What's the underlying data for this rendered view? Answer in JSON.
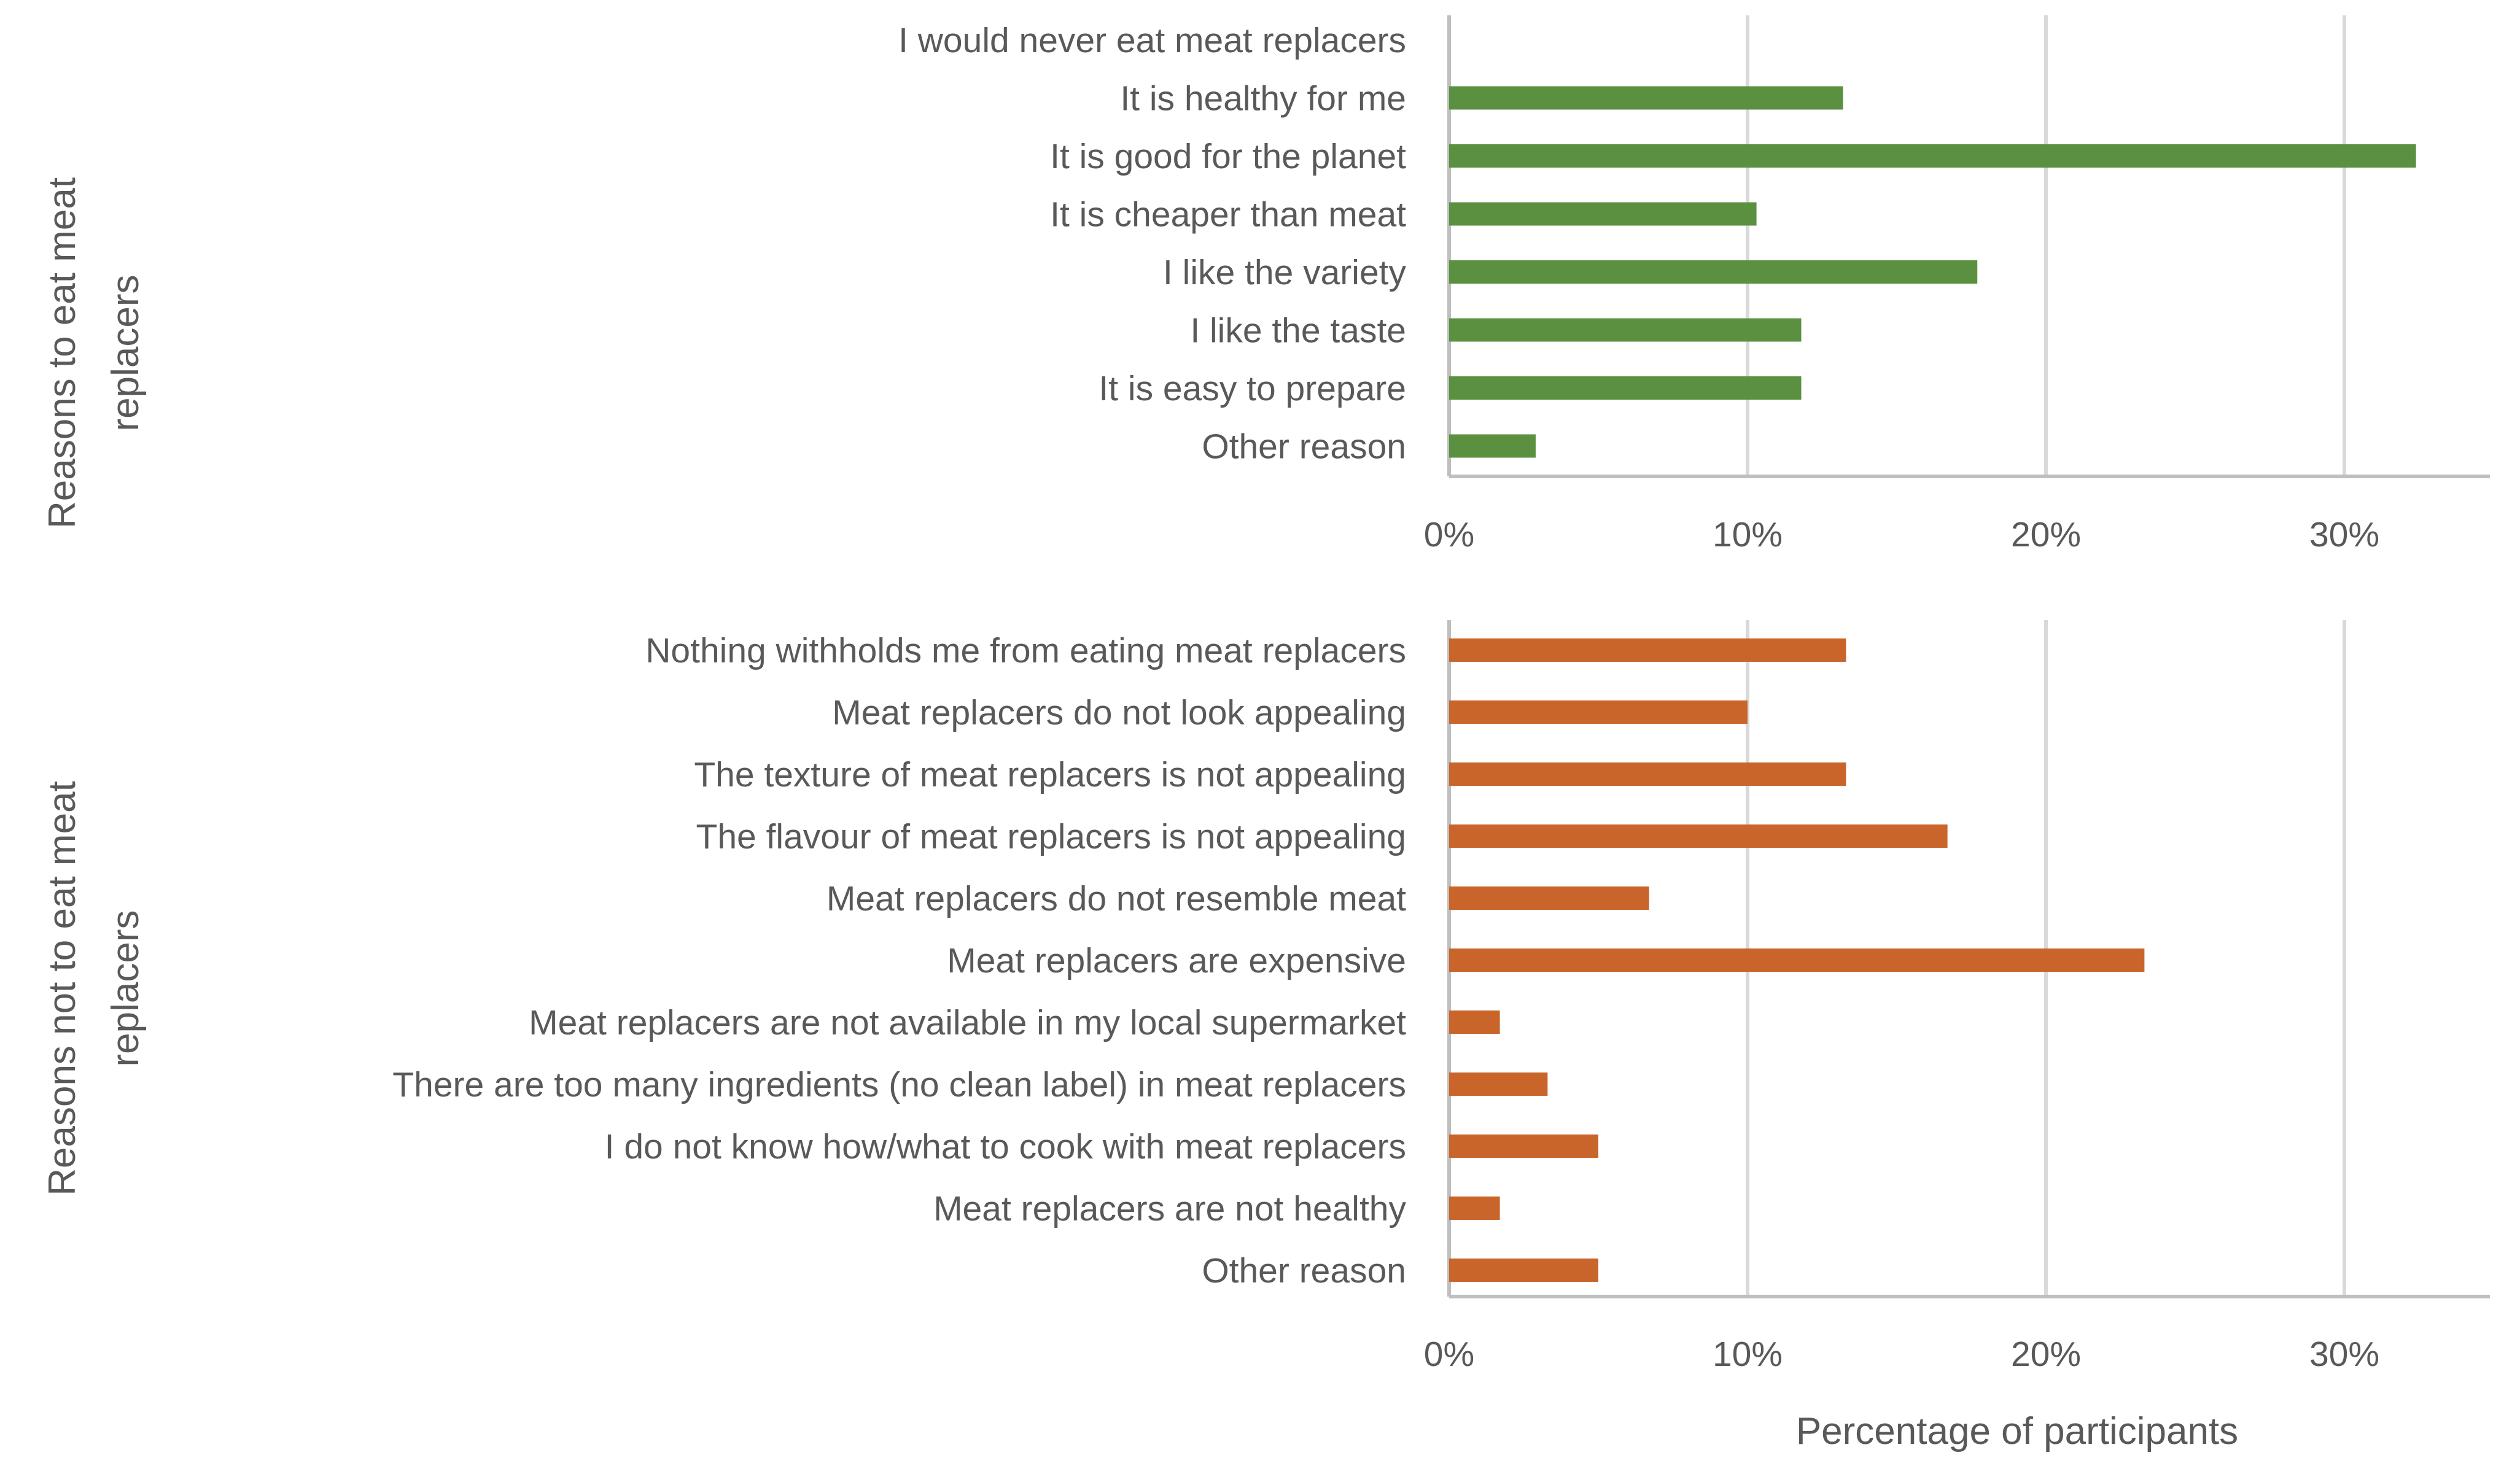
{
  "colors": {
    "reasons_to_eat": "#5b9040",
    "reasons_not_to_eat": "#c9652b",
    "text": "#595959",
    "gridline": "#d9d9d9"
  },
  "chart_data": [
    {
      "type": "bar",
      "orientation": "horizontal",
      "ylabel": "Reasons to eat meat replacers",
      "ylabel_lines": [
        "Reasons to eat meat",
        "replacers"
      ],
      "xlabel": "",
      "xlim": [
        0,
        35
      ],
      "x_ticks": [
        0,
        10,
        20,
        30
      ],
      "x_tick_labels": [
        "0%",
        "10%",
        "20%",
        "30%"
      ],
      "grid": true,
      "categories": [
        "I would never eat meat replacers",
        "It is healthy for me",
        "It is good for the planet",
        "It is cheaper than meat",
        "I like the variety",
        "I like the taste",
        "It is easy to prepare",
        "Other reason"
      ],
      "values": [
        0,
        13.2,
        32.4,
        10.3,
        17.7,
        11.8,
        11.8,
        2.9
      ],
      "units": "%"
    },
    {
      "type": "bar",
      "orientation": "horizontal",
      "ylabel": "Reasons not to eat meat replacers",
      "ylabel_lines": [
        "Reasons not to eat meat",
        "replacers"
      ],
      "xlabel": "Percentage of participants",
      "xlim": [
        0,
        35
      ],
      "x_ticks": [
        0,
        10,
        20,
        30
      ],
      "x_tick_labels": [
        "0%",
        "10%",
        "20%",
        "30%"
      ],
      "grid": true,
      "categories": [
        "Nothing withholds me from eating meat replacers",
        "Meat replacers do not look appealing",
        "The texture of meat replacers is not appealing",
        "The flavour of meat replacers is not appealing",
        "Meat replacers do not resemble meat",
        "Meat replacers are expensive",
        "Meat replacers are not available in my local supermarket",
        "There are too many ingredients (no clean label) in meat replacers",
        "I do not know how/what to cook with meat replacers",
        "Meat replacers are not healthy",
        "Other reason"
      ],
      "values": [
        13.3,
        10.0,
        13.3,
        16.7,
        6.7,
        23.3,
        1.7,
        3.3,
        5.0,
        1.7,
        5.0
      ],
      "units": "%"
    }
  ]
}
